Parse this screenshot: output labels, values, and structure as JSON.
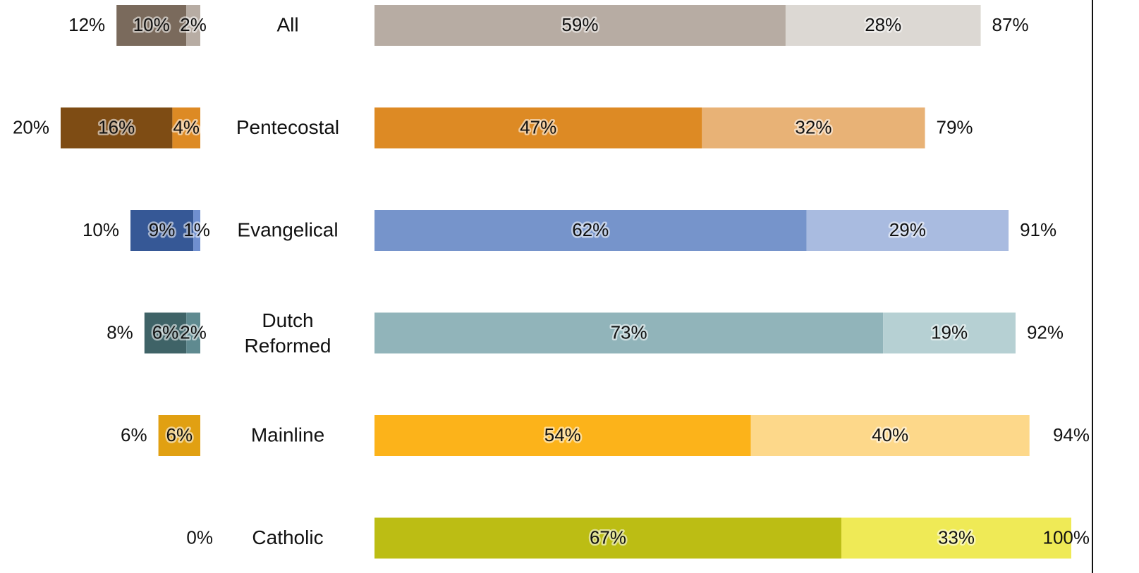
{
  "chart_data": {
    "type": "bar",
    "orientation": "horizontal",
    "categories": [
      "All",
      "Pentecostal",
      "Evangelical",
      "Dutch Reformed",
      "Mainline",
      "Catholic"
    ],
    "left_panel": {
      "direction": "leftward",
      "series": [
        {
          "values": [
            10,
            16,
            9,
            6,
            6,
            0
          ]
        },
        {
          "values": [
            2,
            4,
            1,
            2,
            0,
            0
          ]
        }
      ],
      "totals": [
        12,
        20,
        10,
        8,
        6,
        0
      ],
      "total_labels": [
        "12%",
        "20%",
        "10%",
        "8%",
        "6%",
        "0%"
      ]
    },
    "right_panel": {
      "direction": "rightward",
      "series": [
        {
          "values": [
            59,
            47,
            62,
            73,
            54,
            67
          ]
        },
        {
          "values": [
            28,
            32,
            29,
            19,
            40,
            33
          ]
        }
      ],
      "totals": [
        87,
        79,
        91,
        92,
        94,
        100
      ],
      "total_labels": [
        "87%",
        "79%",
        "91%",
        "92%",
        "94%",
        "100%"
      ]
    },
    "colors": {
      "left_strong": [
        "#7a6a5c",
        "#7e4c14",
        "#365896",
        "#3f6367",
        "#e1a012",
        "#8f9812"
      ],
      "left_weak": [
        "#b7aca3",
        "#dd8a24",
        "#6f8fd0",
        "#5f8a90",
        "#f7c35a",
        "#c9d02a"
      ],
      "right_strong": [
        "#b7aca3",
        "#dd8a24",
        "#7694cb",
        "#91b4ba",
        "#fcb31a",
        "#bcbd14"
      ],
      "right_weak": [
        "#dcd8d3",
        "#e8b276",
        "#a9bbe0",
        "#b6d0d3",
        "#fdd88a",
        "#efea56"
      ]
    },
    "value_suffix": "%"
  }
}
